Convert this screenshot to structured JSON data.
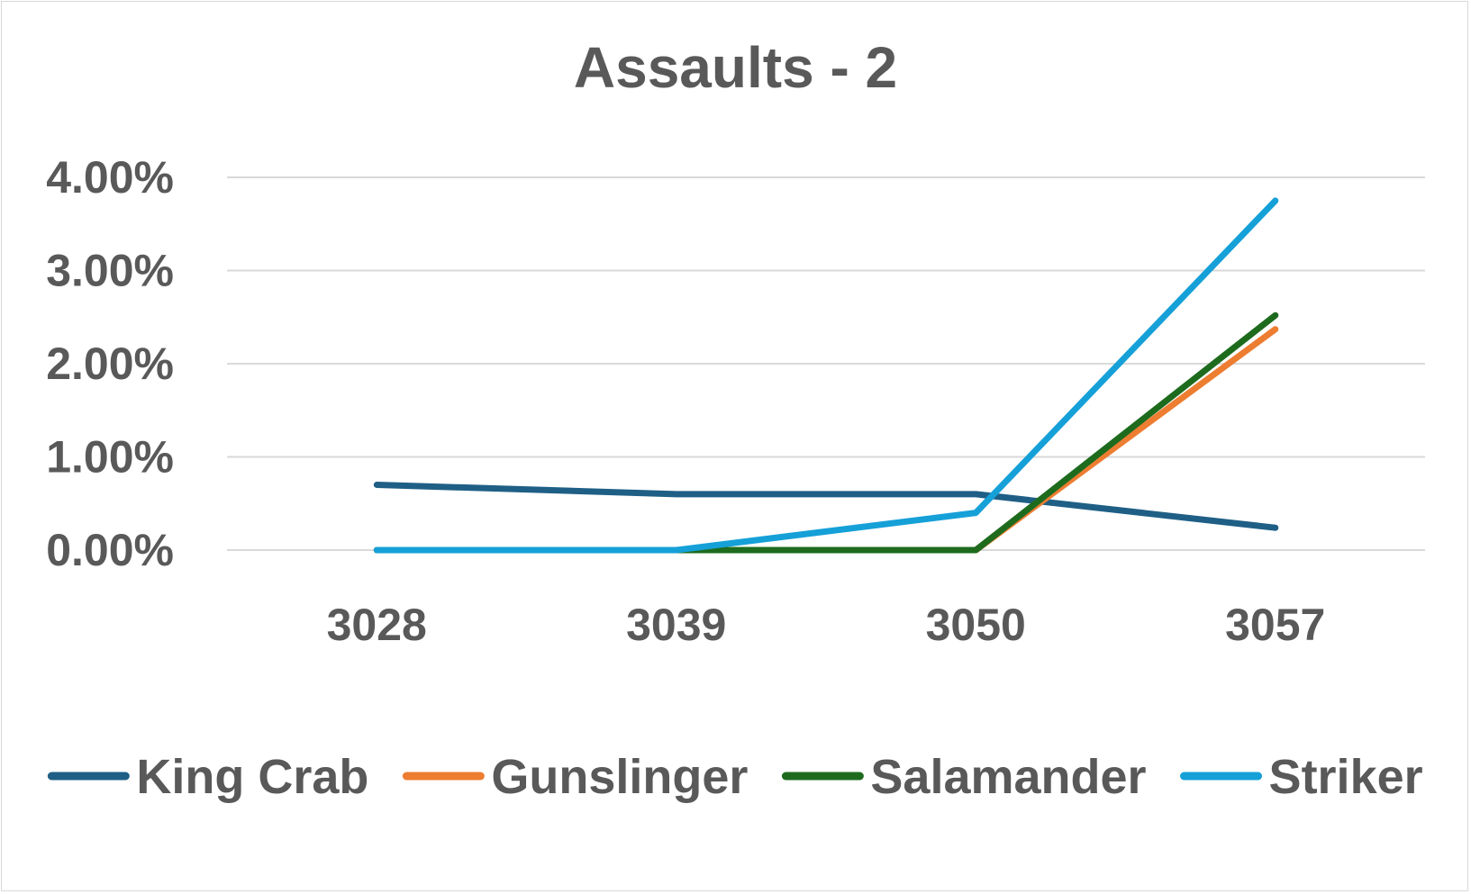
{
  "chart_data": {
    "type": "line",
    "title": "Assaults - 2",
    "categories": [
      "3028",
      "3039",
      "3050",
      "3057"
    ],
    "y_tick_labels": [
      "0.00%",
      "1.00%",
      "2.00%",
      "3.00%",
      "4.00%"
    ],
    "ylim": [
      0,
      0.04
    ],
    "y_ticks": [
      0,
      0.01,
      0.02,
      0.03,
      0.04
    ],
    "grid": true,
    "legend_position": "bottom",
    "series": [
      {
        "name": "King Crab",
        "color": "#1f5f86",
        "values": [
          0.007,
          0.006,
          0.006,
          0.0024
        ]
      },
      {
        "name": "Gunslinger",
        "color": "#ed7d31",
        "values": [
          0.0,
          0.0,
          0.0,
          0.0237
        ]
      },
      {
        "name": "Salamander",
        "color": "#1e6b1e",
        "values": [
          0.0,
          0.0,
          0.0,
          0.0252
        ]
      },
      {
        "name": "Striker",
        "color": "#16a0d8",
        "values": [
          0.0,
          0.0,
          0.004,
          0.0375
        ]
      }
    ]
  }
}
